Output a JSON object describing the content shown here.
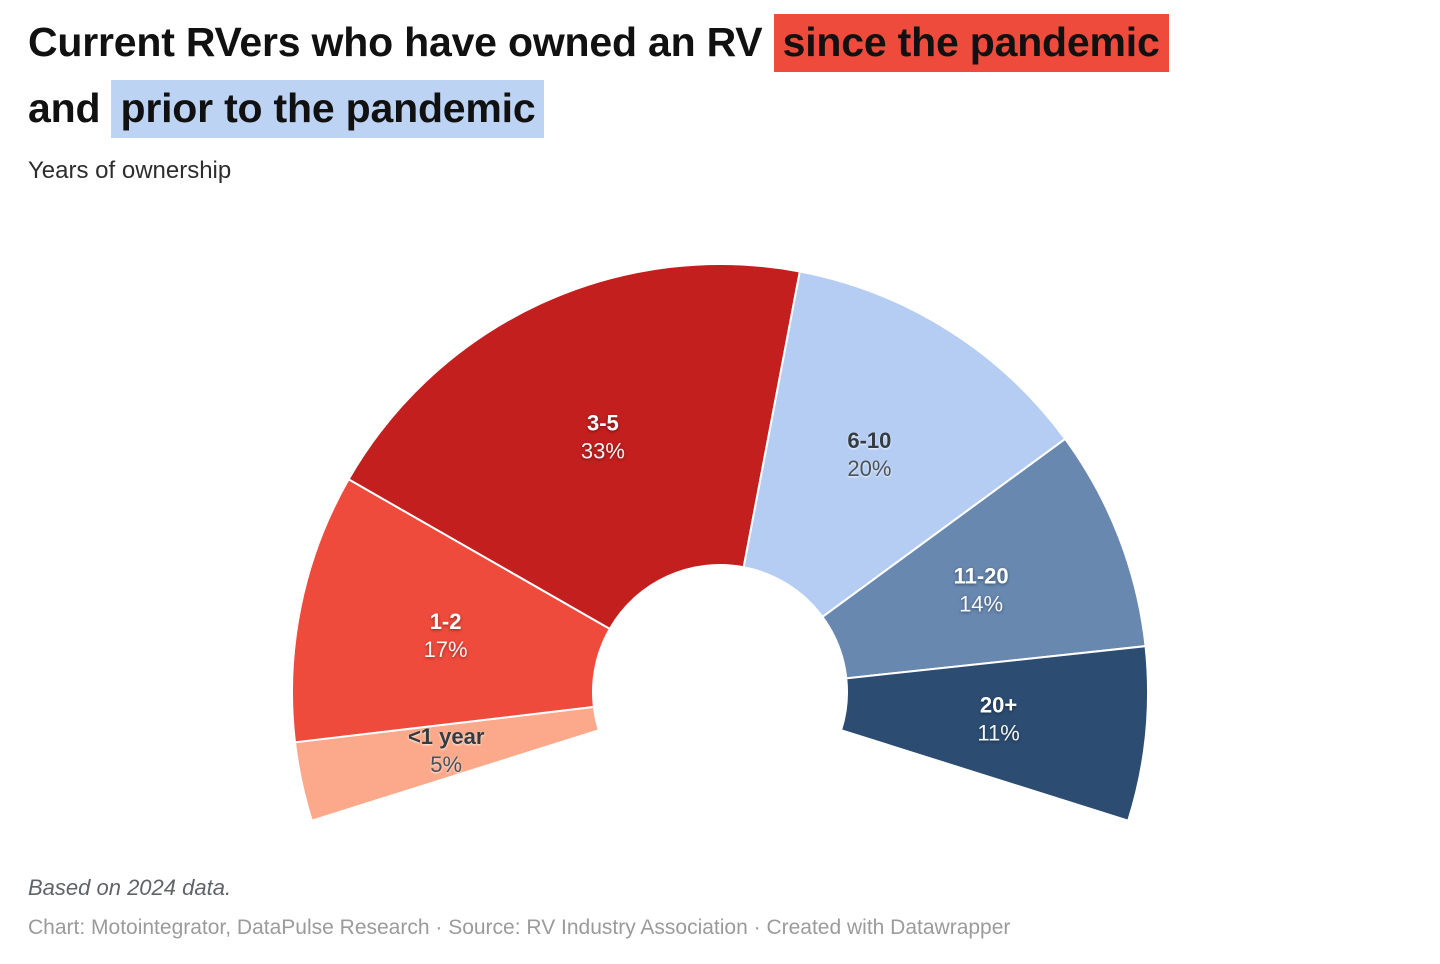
{
  "title": {
    "line1_normal": "Current RVers who have owned an RV ",
    "line1_highlight": "since the pandemic",
    "line2_normal": "and ",
    "line2_highlight": "prior to the pandemic",
    "highlight_red": "#ee4b3c",
    "highlight_blue": "#bdd3f3"
  },
  "subtitle": "Years of ownership",
  "chart_data": {
    "type": "half-donut",
    "title": "Current RVers who have owned an RV since the pandemic and prior to the pandemic",
    "subtitle": "Years of ownership",
    "unit": "%",
    "start_angle_deg": 197.5,
    "total_span_deg": 215,
    "legend_position": "labels-inside-segments",
    "categories": [
      "<1 year",
      "1-2",
      "3-5",
      "6-10",
      "11-20",
      "20+"
    ],
    "values": [
      5,
      17,
      33,
      20,
      14,
      11
    ],
    "segments": [
      {
        "label": "<1 year",
        "value": 5,
        "display": "5%",
        "color": "#fba98a",
        "text": "dark"
      },
      {
        "label": "1-2",
        "value": 17,
        "display": "17%",
        "color": "#ef4b3c",
        "text": "light"
      },
      {
        "label": "3-5",
        "value": 33,
        "display": "33%",
        "color": "#c41f1f",
        "text": "light"
      },
      {
        "label": "6-10",
        "value": 20,
        "display": "20%",
        "color": "#b5cdf2",
        "text": "dark"
      },
      {
        "label": "11-20",
        "value": 14,
        "display": "14%",
        "color": "#6888b0",
        "text": "light"
      },
      {
        "label": "20+",
        "value": 11,
        "display": "11%",
        "color": "#2c4d71",
        "text": "light"
      }
    ]
  },
  "footer": {
    "note": "Based on 2024 data.",
    "credit": "Chart: Motointegrator, DataPulse Research · Source: RV Industry Association · Created with Datawrapper"
  }
}
